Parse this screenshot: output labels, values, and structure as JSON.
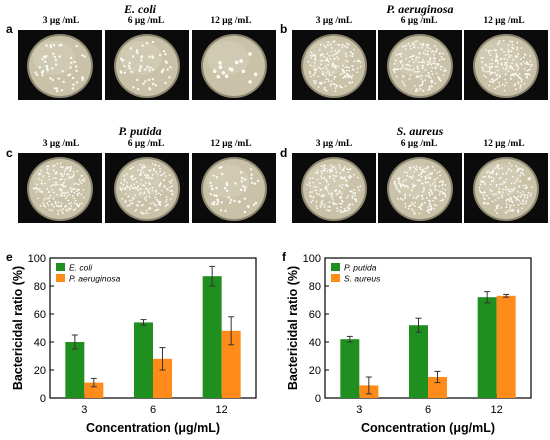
{
  "panels": {
    "a": {
      "letter": "a",
      "organism": "E. coli",
      "concentrations": [
        "3 μg /mL",
        "6 μg /mL",
        "12 μg /mL"
      ],
      "colony_density": [
        "medium",
        "medium",
        "low"
      ]
    },
    "b": {
      "letter": "b",
      "organism": "P. aeruginosa",
      "concentrations": [
        "3 μg /mL",
        "6 μg /mL",
        "12 μg /mL"
      ],
      "colony_density": [
        "high",
        "high",
        "high"
      ]
    },
    "c": {
      "letter": "c",
      "organism": "P. putida",
      "concentrations": [
        "3 μg /mL",
        "6 μg /mL",
        "12 μg /mL"
      ],
      "colony_density": [
        "high",
        "high",
        "medium"
      ]
    },
    "d": {
      "letter": "d",
      "organism": "S. aureus",
      "concentrations": [
        "3 μg /mL",
        "6 μg /mL",
        "12 μg /mL"
      ],
      "colony_density": [
        "high",
        "high",
        "high"
      ]
    }
  },
  "colors": {
    "series1": "#1f8f1f",
    "series2": "#ff8c1a",
    "photo_bg": "#0b0b0b",
    "agar": "#c9c2a8"
  },
  "chart_data": [
    {
      "panel": "e",
      "type": "bar",
      "categories": [
        "3",
        "6",
        "12"
      ],
      "series": [
        {
          "name": "E. coli",
          "values": [
            40,
            54,
            87
          ],
          "errors": [
            5,
            2,
            7
          ]
        },
        {
          "name": "P. aeruginosa",
          "values": [
            11,
            28,
            48
          ],
          "errors": [
            3,
            8,
            10
          ]
        }
      ],
      "xlabel": "Concentration (μg/mL)",
      "ylabel": "Bactericidal ratio (%)",
      "ylim": [
        0,
        100
      ],
      "yticks": [
        0,
        20,
        40,
        60,
        80,
        100
      ],
      "legend": "top-left",
      "grid": false
    },
    {
      "panel": "f",
      "type": "bar",
      "categories": [
        "3",
        "6",
        "12"
      ],
      "series": [
        {
          "name": "P. putida",
          "values": [
            42,
            52,
            72
          ],
          "errors": [
            2,
            5,
            4
          ]
        },
        {
          "name": "S. aureus",
          "values": [
            9,
            15,
            73
          ],
          "errors": [
            6,
            4,
            1
          ]
        }
      ],
      "xlabel": "Concentration (μg/mL)",
      "ylabel": "Bactericidal ratio (%)",
      "ylim": [
        0,
        100
      ],
      "yticks": [
        0,
        20,
        40,
        60,
        80,
        100
      ],
      "legend": "top-left",
      "grid": false
    }
  ]
}
